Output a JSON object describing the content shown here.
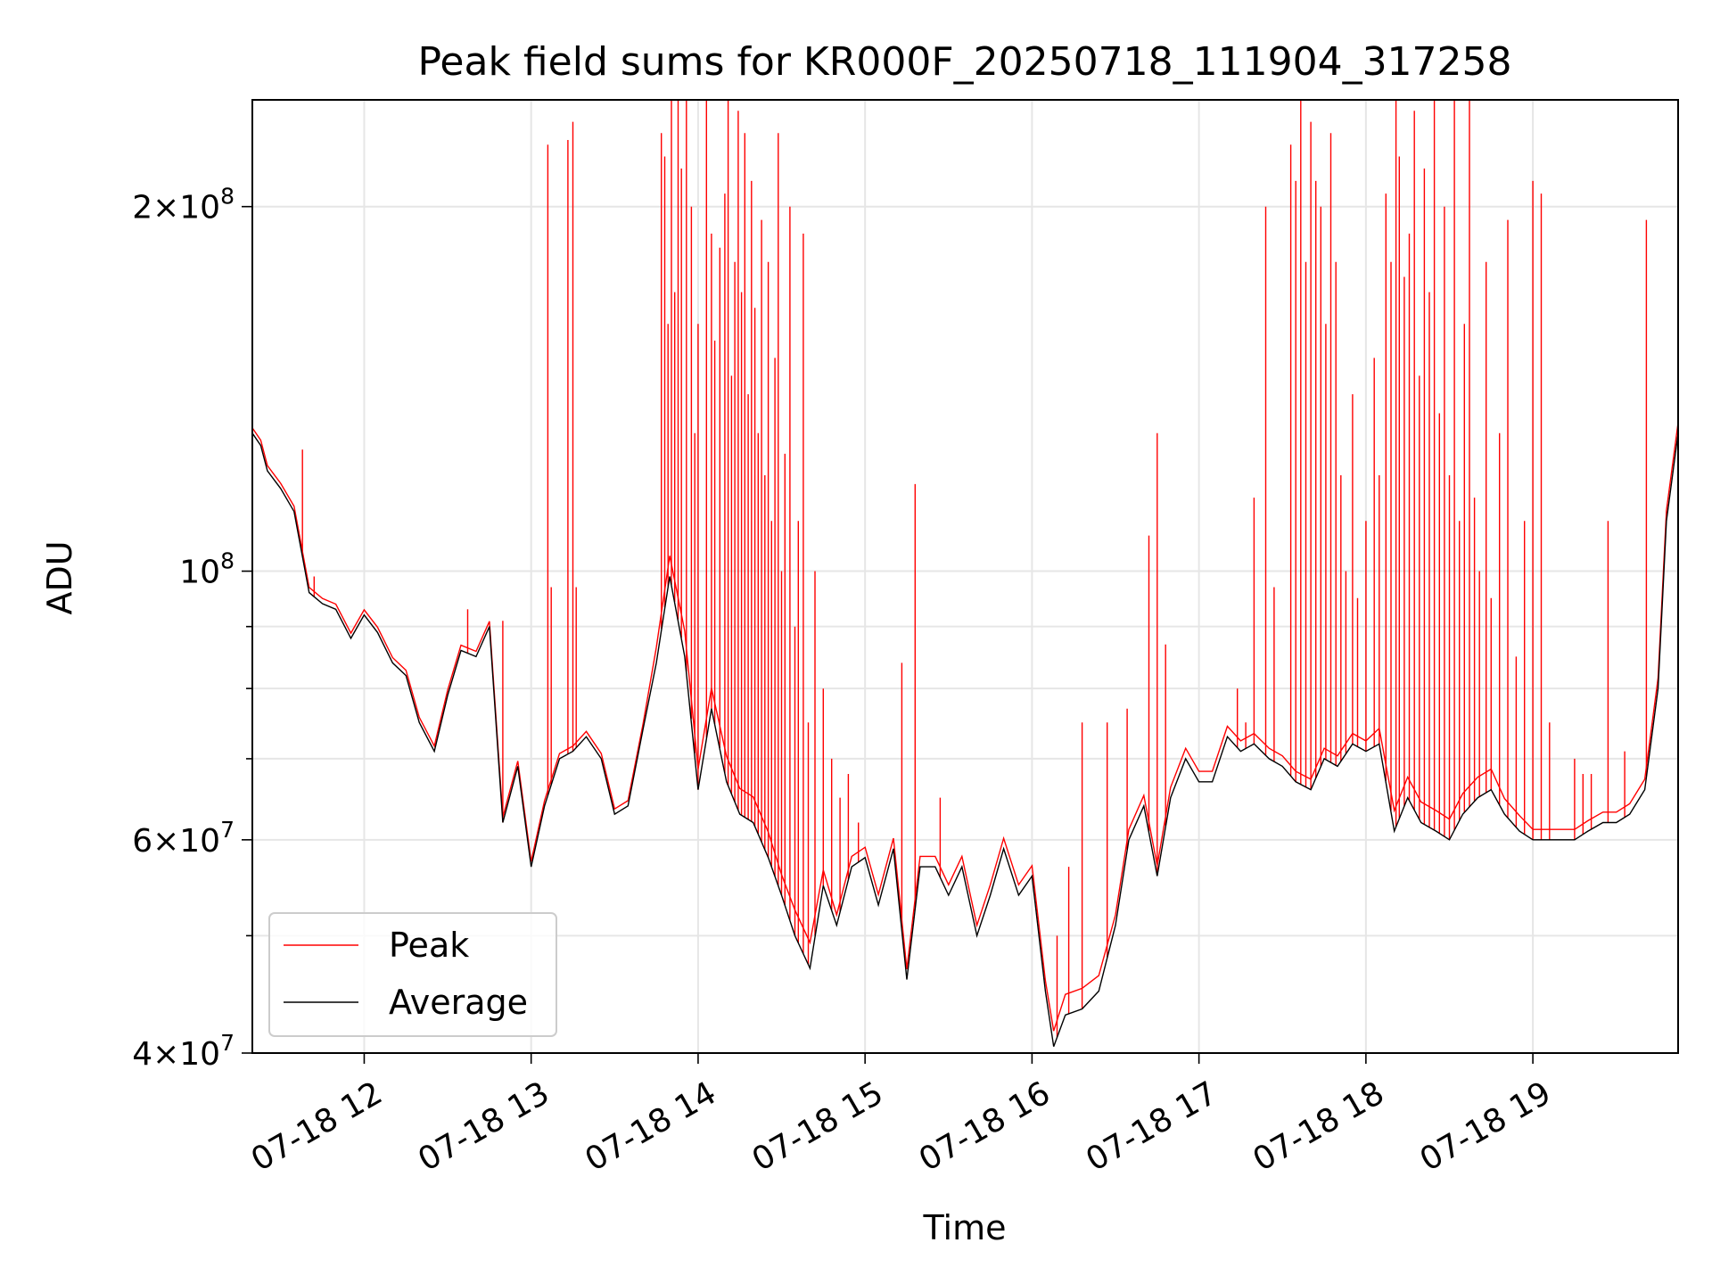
{
  "chart_data": {
    "type": "line",
    "title": "Peak field sums for KR000F_20250718_111904_317258",
    "xlabel": "Time",
    "ylabel": "ADU",
    "yscale": "log",
    "ylim": [
      40000000,
      245000000
    ],
    "xlim_hours": [
      11.33,
      19.87
    ],
    "grid": true,
    "legend_position": "lower-left",
    "x_ticks": [
      {
        "hour": 12,
        "label": "07-18 12"
      },
      {
        "hour": 13,
        "label": "07-18 13"
      },
      {
        "hour": 14,
        "label": "07-18 14"
      },
      {
        "hour": 15,
        "label": "07-18 15"
      },
      {
        "hour": 16,
        "label": "07-18 16"
      },
      {
        "hour": 17,
        "label": "07-18 17"
      },
      {
        "hour": 18,
        "label": "07-18 18"
      },
      {
        "hour": 19,
        "label": "07-18 19"
      }
    ],
    "y_ticks": [
      {
        "value": 40000000,
        "mantissa": "4",
        "base": "10",
        "exp": "7"
      },
      {
        "value": 60000000,
        "mantissa": "6",
        "base": "10",
        "exp": "7"
      },
      {
        "value": 100000000,
        "mantissa": "",
        "base": "10",
        "exp": "8"
      },
      {
        "value": 200000000,
        "mantissa": "2",
        "base": "10",
        "exp": "8"
      }
    ],
    "series": [
      {
        "name": "Average",
        "color": "#000000",
        "x": [
          11.33,
          11.38,
          11.42,
          11.5,
          11.58,
          11.67,
          11.75,
          11.83,
          11.92,
          12.0,
          12.08,
          12.17,
          12.25,
          12.33,
          12.42,
          12.5,
          12.58,
          12.67,
          12.75,
          12.83,
          12.92,
          13.0,
          13.08,
          13.17,
          13.25,
          13.33,
          13.42,
          13.5,
          13.58,
          13.67,
          13.75,
          13.83,
          13.92,
          14.0,
          14.08,
          14.17,
          14.25,
          14.33,
          14.42,
          14.5,
          14.58,
          14.67,
          14.75,
          14.83,
          14.92,
          15.0,
          15.08,
          15.17,
          15.25,
          15.33,
          15.42,
          15.5,
          15.58,
          15.67,
          15.75,
          15.83,
          15.92,
          16.0,
          16.08,
          16.13,
          16.2,
          16.3,
          16.4,
          16.5,
          16.58,
          16.67,
          16.75,
          16.83,
          16.92,
          17.0,
          17.08,
          17.17,
          17.25,
          17.33,
          17.42,
          17.5,
          17.58,
          17.67,
          17.75,
          17.83,
          17.92,
          18.0,
          18.08,
          18.17,
          18.25,
          18.33,
          18.42,
          18.5,
          18.58,
          18.67,
          18.75,
          18.83,
          18.92,
          19.0,
          19.08,
          19.17,
          19.25,
          19.33,
          19.42,
          19.5,
          19.58,
          19.67,
          19.75,
          19.8,
          19.87
        ],
        "values": [
          130000000,
          127000000,
          121000000,
          117000000,
          112000000,
          96000000,
          94000000,
          93000000,
          88000000,
          92000000,
          89000000,
          84000000,
          82000000,
          75000000,
          71000000,
          79000000,
          86000000,
          85000000,
          90000000,
          62000000,
          69000000,
          57000000,
          64000000,
          70000000,
          71000000,
          73000000,
          70000000,
          63000000,
          64000000,
          74000000,
          84000000,
          99000000,
          85000000,
          66000000,
          77000000,
          67000000,
          63000000,
          62000000,
          58000000,
          54000000,
          50000000,
          47000000,
          55000000,
          51000000,
          57000000,
          58000000,
          53000000,
          59000000,
          46000000,
          57000000,
          57000000,
          54000000,
          57000000,
          50000000,
          54000000,
          59000000,
          54000000,
          56000000,
          45000000,
          40500000,
          43000000,
          43500000,
          45000000,
          51000000,
          60000000,
          64000000,
          56000000,
          65000000,
          70000000,
          67000000,
          67000000,
          73000000,
          71000000,
          72000000,
          70000000,
          69000000,
          67000000,
          66000000,
          70000000,
          69000000,
          72000000,
          71000000,
          72000000,
          61000000,
          65000000,
          62000000,
          61000000,
          60000000,
          63000000,
          65000000,
          66000000,
          63000000,
          61000000,
          60000000,
          60000000,
          60000000,
          60000000,
          61000000,
          62000000,
          62000000,
          63000000,
          66000000,
          80000000,
          110000000,
          130000000
        ]
      },
      {
        "name": "Peak",
        "color": "#ff0000",
        "offset": [
          0.01,
          0.01,
          0.01,
          0.01,
          0.01,
          0.01,
          0.01,
          0.01,
          0.01,
          0.01,
          0.01,
          0.01,
          0.01,
          0.01,
          0.01,
          0.01,
          0.01,
          0.01,
          0.01,
          0.01,
          0.01,
          0.01,
          0.01,
          0.01,
          0.01,
          0.01,
          0.01,
          0.01,
          0.01,
          0.01,
          0.03,
          0.04,
          0.05,
          0.04,
          0.04,
          0.05,
          0.05,
          0.05,
          0.05,
          0.04,
          0.05,
          0.05,
          0.03,
          0.02,
          0.02,
          0.02,
          0.02,
          0.02,
          0.02,
          0.02,
          0.02,
          0.02,
          0.02,
          0.02,
          0.02,
          0.02,
          0.02,
          0.02,
          0.02,
          0.03,
          0.04,
          0.04,
          0.03,
          0.02,
          0.02,
          0.02,
          0.02,
          0.02,
          0.02,
          0.02,
          0.02,
          0.02,
          0.02,
          0.02,
          0.02,
          0.02,
          0.02,
          0.02,
          0.02,
          0.02,
          0.02,
          0.02,
          0.03,
          0.04,
          0.04,
          0.04,
          0.04,
          0.04,
          0.04,
          0.04,
          0.04,
          0.03,
          0.03,
          0.02,
          0.02,
          0.02,
          0.02,
          0.02,
          0.02,
          0.02,
          0.02,
          0.02,
          0.02,
          0.02,
          0.02
        ],
        "spikes": [
          [
            11.63,
            126000000
          ],
          [
            11.7,
            99000000
          ],
          [
            12.62,
            93000000
          ],
          [
            12.83,
            91000000
          ],
          [
            13.1,
            225000000
          ],
          [
            13.12,
            97000000
          ],
          [
            13.22,
            227000000
          ],
          [
            13.25,
            235000000
          ],
          [
            13.27,
            97000000
          ],
          [
            13.78,
            230000000
          ],
          [
            13.8,
            220000000
          ],
          [
            13.82,
            160000000
          ],
          [
            13.84,
            245000000
          ],
          [
            13.86,
            170000000
          ],
          [
            13.88,
            245000000
          ],
          [
            13.9,
            215000000
          ],
          [
            13.93,
            245000000
          ],
          [
            13.96,
            200000000
          ],
          [
            13.98,
            130000000
          ],
          [
            14.0,
            160000000
          ],
          [
            14.05,
            245000000
          ],
          [
            14.08,
            190000000
          ],
          [
            14.1,
            155000000
          ],
          [
            14.13,
            185000000
          ],
          [
            14.16,
            205000000
          ],
          [
            14.18,
            245000000
          ],
          [
            14.2,
            145000000
          ],
          [
            14.22,
            180000000
          ],
          [
            14.24,
            240000000
          ],
          [
            14.26,
            170000000
          ],
          [
            14.28,
            230000000
          ],
          [
            14.3,
            140000000
          ],
          [
            14.32,
            210000000
          ],
          [
            14.34,
            165000000
          ],
          [
            14.36,
            130000000
          ],
          [
            14.38,
            195000000
          ],
          [
            14.4,
            120000000
          ],
          [
            14.42,
            180000000
          ],
          [
            14.44,
            110000000
          ],
          [
            14.46,
            150000000
          ],
          [
            14.48,
            230000000
          ],
          [
            14.5,
            100000000
          ],
          [
            14.52,
            125000000
          ],
          [
            14.55,
            200000000
          ],
          [
            14.58,
            90000000
          ],
          [
            14.6,
            110000000
          ],
          [
            14.63,
            190000000
          ],
          [
            14.66,
            75000000
          ],
          [
            14.7,
            100000000
          ],
          [
            14.75,
            80000000
          ],
          [
            14.8,
            70000000
          ],
          [
            14.85,
            65000000
          ],
          [
            14.9,
            68000000
          ],
          [
            14.96,
            62000000
          ],
          [
            15.22,
            84000000
          ],
          [
            15.3,
            118000000
          ],
          [
            15.45,
            65000000
          ],
          [
            16.15,
            50000000
          ],
          [
            16.22,
            57000000
          ],
          [
            16.3,
            75000000
          ],
          [
            16.45,
            75000000
          ],
          [
            16.57,
            77000000
          ],
          [
            16.7,
            107000000
          ],
          [
            16.75,
            130000000
          ],
          [
            16.8,
            87000000
          ],
          [
            17.23,
            80000000
          ],
          [
            17.28,
            75000000
          ],
          [
            17.33,
            115000000
          ],
          [
            17.4,
            200000000
          ],
          [
            17.45,
            97000000
          ],
          [
            17.55,
            225000000
          ],
          [
            17.58,
            210000000
          ],
          [
            17.61,
            245000000
          ],
          [
            17.64,
            180000000
          ],
          [
            17.67,
            235000000
          ],
          [
            17.7,
            210000000
          ],
          [
            17.73,
            200000000
          ],
          [
            17.76,
            160000000
          ],
          [
            17.79,
            230000000
          ],
          [
            17.82,
            180000000
          ],
          [
            17.85,
            120000000
          ],
          [
            17.88,
            100000000
          ],
          [
            17.92,
            140000000
          ],
          [
            17.95,
            95000000
          ],
          [
            18.0,
            110000000
          ],
          [
            18.05,
            150000000
          ],
          [
            18.08,
            120000000
          ],
          [
            18.12,
            205000000
          ],
          [
            18.15,
            180000000
          ],
          [
            18.18,
            245000000
          ],
          [
            18.2,
            220000000
          ],
          [
            18.23,
            175000000
          ],
          [
            18.26,
            190000000
          ],
          [
            18.29,
            240000000
          ],
          [
            18.32,
            145000000
          ],
          [
            18.35,
            215000000
          ],
          [
            18.38,
            170000000
          ],
          [
            18.41,
            245000000
          ],
          [
            18.44,
            135000000
          ],
          [
            18.47,
            200000000
          ],
          [
            18.5,
            120000000
          ],
          [
            18.53,
            245000000
          ],
          [
            18.56,
            110000000
          ],
          [
            18.59,
            160000000
          ],
          [
            18.62,
            245000000
          ],
          [
            18.65,
            115000000
          ],
          [
            18.68,
            100000000
          ],
          [
            18.72,
            180000000
          ],
          [
            18.75,
            95000000
          ],
          [
            18.8,
            130000000
          ],
          [
            18.85,
            195000000
          ],
          [
            18.9,
            85000000
          ],
          [
            18.95,
            110000000
          ],
          [
            19.0,
            210000000
          ],
          [
            19.05,
            205000000
          ],
          [
            19.1,
            75000000
          ],
          [
            19.25,
            70000000
          ],
          [
            19.3,
            68000000
          ],
          [
            19.35,
            68000000
          ],
          [
            19.45,
            110000000
          ],
          [
            19.55,
            71000000
          ],
          [
            19.68,
            195000000
          ]
        ]
      }
    ]
  }
}
